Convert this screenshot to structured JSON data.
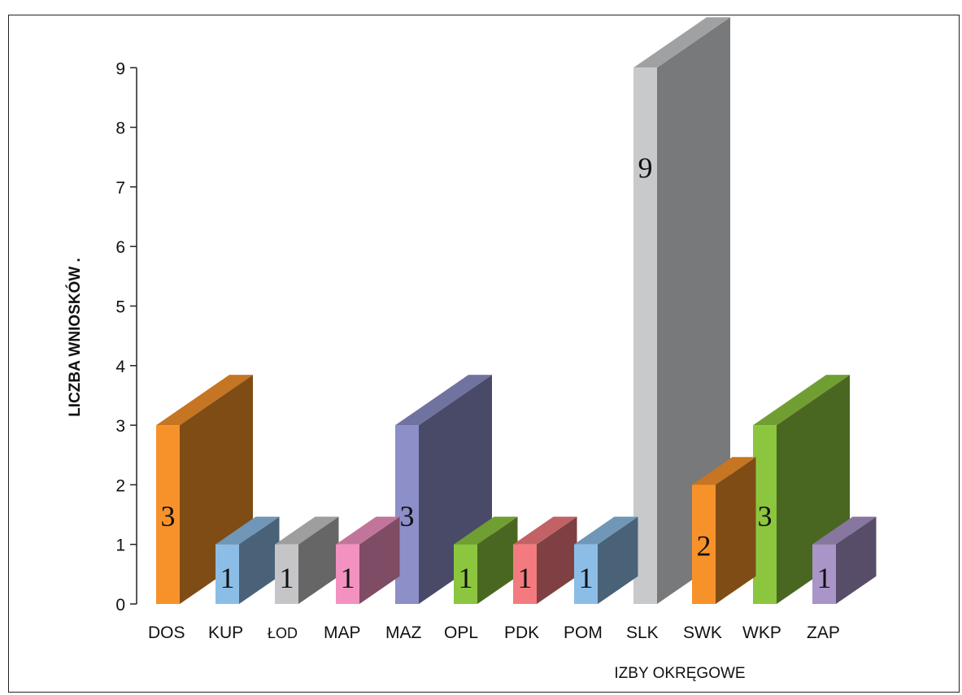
{
  "chart_data": {
    "type": "bar",
    "title": "",
    "xlabel": "IZBY OKRĘGOWE",
    "ylabel": "LICZBA WNIOSKÓW .",
    "ylim": [
      0,
      9
    ],
    "yticks": [
      "0",
      "1",
      "2",
      "3",
      "4",
      "5",
      "6",
      "7",
      "8",
      "9"
    ],
    "categories": [
      "DOS",
      "KUP",
      "ŁOD",
      "MAP",
      "MAZ",
      "OPL",
      "PDK",
      "POM",
      "SLK",
      "SWK",
      "WKP",
      "ZAP"
    ],
    "values": [
      3,
      1,
      1,
      1,
      3,
      1,
      1,
      1,
      9,
      2,
      3,
      1
    ],
    "data_labels": [
      "3",
      "1",
      "1",
      "1",
      "3",
      "1",
      "1",
      "1",
      "9",
      "2",
      "3",
      "1"
    ],
    "grid": false,
    "legend": "none",
    "style": "3d",
    "colors": [
      "#f7922b",
      "#8cbde6",
      "#c5c5c7",
      "#f392c0",
      "#8c8fc8",
      "#8cc63f",
      "#f37b80",
      "#8cbde6",
      "#c8c9cb",
      "#f7922b",
      "#8cc63f",
      "#a995c8"
    ]
  }
}
